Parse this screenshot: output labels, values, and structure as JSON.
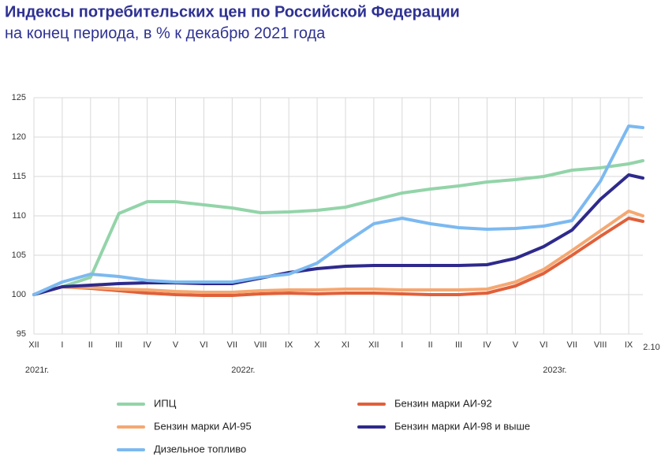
{
  "chart_data": {
    "type": "line",
    "title": "Индексы потребительских цен по Российской Федерации",
    "subtitle": "на конец периода, в % к декабрю 2021 года",
    "x": [
      0,
      1,
      2,
      3,
      4,
      5,
      6,
      7,
      8,
      9,
      10,
      11,
      12,
      13,
      14,
      15,
      16,
      17,
      18,
      19,
      20,
      21,
      21.5
    ],
    "xlim": [
      0,
      21.5
    ],
    "xticks": [
      {
        "value": 0,
        "label": "XII"
      },
      {
        "value": 1,
        "label": "I"
      },
      {
        "value": 2,
        "label": "II"
      },
      {
        "value": 3,
        "label": "III"
      },
      {
        "value": 4,
        "label": "IV"
      },
      {
        "value": 5,
        "label": "V"
      },
      {
        "value": 6,
        "label": "VI"
      },
      {
        "value": 7,
        "label": "VII"
      },
      {
        "value": 8,
        "label": "VIII"
      },
      {
        "value": 9,
        "label": "IX"
      },
      {
        "value": 10,
        "label": "X"
      },
      {
        "value": 11,
        "label": "XI"
      },
      {
        "value": 12,
        "label": "XII"
      },
      {
        "value": 13,
        "label": "I"
      },
      {
        "value": 14,
        "label": "II"
      },
      {
        "value": 15,
        "label": "III"
      },
      {
        "value": 16,
        "label": "IV"
      },
      {
        "value": 17,
        "label": "V"
      },
      {
        "value": 18,
        "label": "VI"
      },
      {
        "value": 19,
        "label": "VII"
      },
      {
        "value": 20,
        "label": "VIII"
      },
      {
        "value": 21,
        "label": "IX"
      },
      {
        "value": 21.5,
        "label": "2.10"
      }
    ],
    "annotations": [
      {
        "x": 0,
        "text": "2021г."
      },
      {
        "x": 7,
        "text": "2022г."
      },
      {
        "x": 18,
        "text": "2023г."
      }
    ],
    "ylim": [
      95,
      125
    ],
    "yticks": [
      95,
      100,
      105,
      110,
      115,
      120,
      125
    ],
    "grid": true,
    "series": [
      {
        "name": "ИПЦ",
        "color": "#93d4a9",
        "values": [
          100,
          101,
          102.2,
          110.3,
          111.8,
          111.8,
          111.4,
          111,
          110.4,
          110.5,
          110.7,
          111.1,
          112,
          112.9,
          113.4,
          113.8,
          114.3,
          114.6,
          115,
          115.8,
          116.1,
          116.6,
          117.0
        ]
      },
      {
        "name": "Бензин марки АИ-92",
        "color": "#e0603a",
        "values": [
          100,
          101,
          100.8,
          100.5,
          100.2,
          100.0,
          99.9,
          99.9,
          100.1,
          100.2,
          100.1,
          100.2,
          100.2,
          100.1,
          100.0,
          100.0,
          100.2,
          101.1,
          102.7,
          105.0,
          107.4,
          109.7,
          109.3
        ]
      },
      {
        "name": "Бензин марки АИ-95",
        "color": "#f5a872",
        "values": [
          100,
          101,
          100.9,
          100.7,
          100.6,
          100.4,
          100.3,
          100.3,
          100.5,
          100.6,
          100.6,
          100.7,
          100.7,
          100.6,
          100.6,
          100.6,
          100.7,
          101.6,
          103.2,
          105.6,
          108.1,
          110.6,
          110.0
        ]
      },
      {
        "name": "Бензин марки АИ-98 и выше",
        "color": "#2e2a8c",
        "values": [
          100,
          101,
          101.2,
          101.4,
          101.5,
          101.5,
          101.4,
          101.4,
          102.1,
          102.8,
          103.3,
          103.6,
          103.7,
          103.7,
          103.7,
          103.7,
          103.8,
          104.6,
          106.1,
          108.2,
          112.1,
          115.2,
          114.8
        ]
      },
      {
        "name": "Дизельное топливо",
        "color": "#7cb9f0",
        "values": [
          100,
          101.6,
          102.6,
          102.3,
          101.8,
          101.6,
          101.6,
          101.6,
          102.2,
          102.6,
          104,
          106.6,
          109,
          109.7,
          109,
          108.5,
          108.3,
          108.4,
          108.7,
          109.4,
          114.4,
          121.4,
          121.2
        ]
      }
    ]
  }
}
